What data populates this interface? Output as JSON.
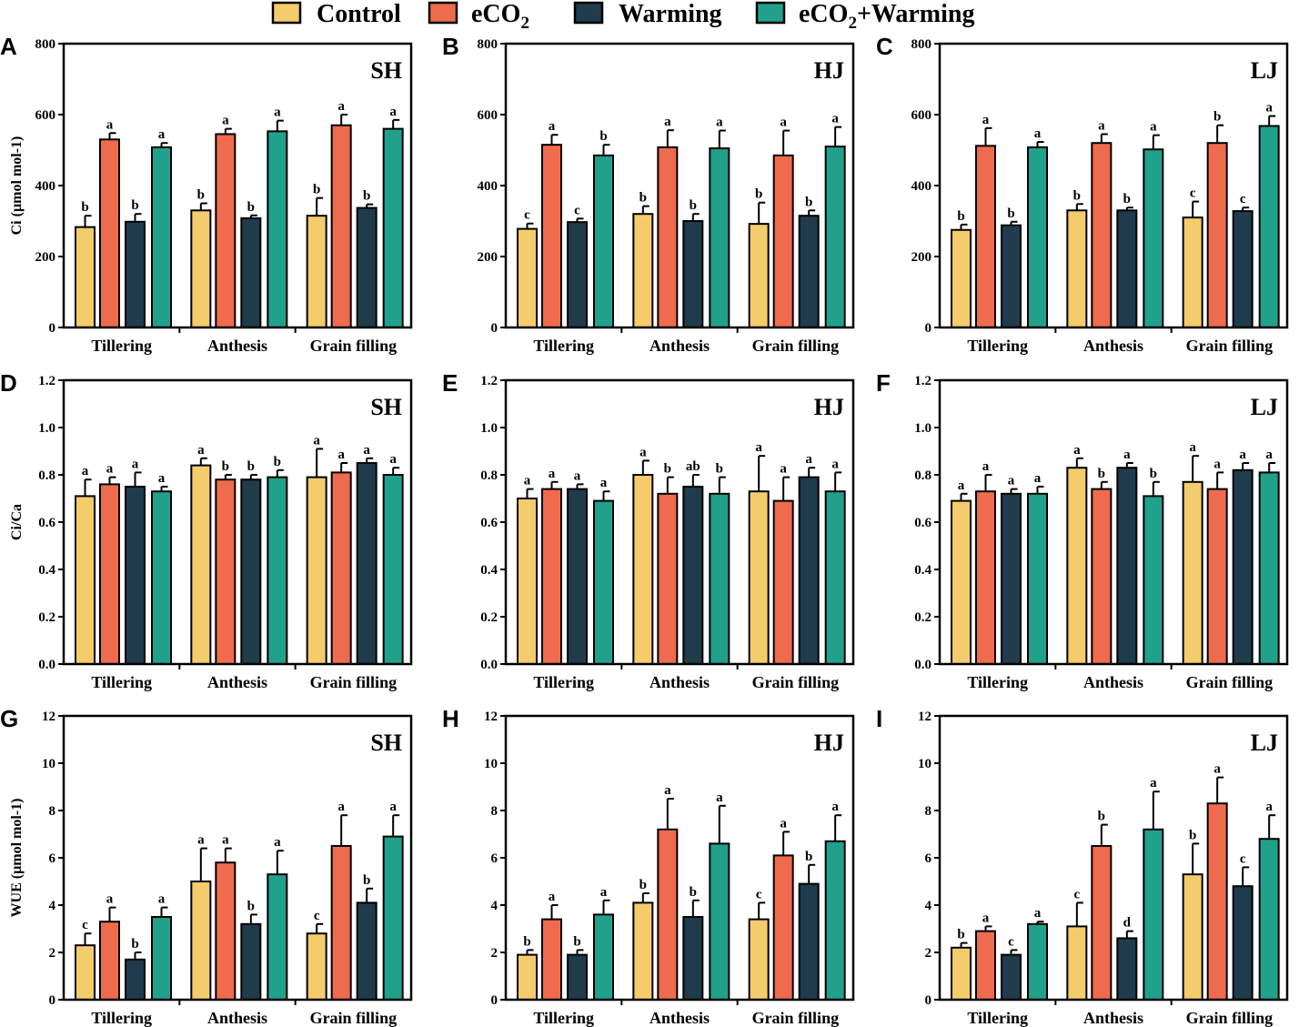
{
  "legend": {
    "items": [
      {
        "label": "Control",
        "color": "#F5CC6B"
      },
      {
        "label": "eCO",
        "sub": "2",
        "suffix": "",
        "color": "#EF6B4E"
      },
      {
        "label": "Warming",
        "color": "#1F3B4C"
      },
      {
        "label": "eCO",
        "sub": "2",
        "suffix": "+Warming",
        "color": "#21A08B"
      }
    ]
  },
  "categories": [
    "Tillering",
    "Anthesis",
    "Grain filling"
  ],
  "chart_data": [
    {
      "type": "bar",
      "panel": "A",
      "site": "SH",
      "ylabel": "Ci (µmol mol-1)",
      "ylim": [
        0,
        800
      ],
      "yticks": [
        "0",
        "200",
        "400",
        "600",
        "800"
      ],
      "series": [
        {
          "name": "Control",
          "values": [
            283,
            330,
            315
          ],
          "errors": [
            32,
            20,
            50
          ],
          "letters": [
            "b",
            "b",
            "b"
          ]
        },
        {
          "name": "eCO2",
          "values": [
            530,
            545,
            570
          ],
          "errors": [
            18,
            15,
            30
          ],
          "letters": [
            "a",
            "a",
            "a"
          ]
        },
        {
          "name": "Warming",
          "values": [
            298,
            308,
            337
          ],
          "errors": [
            22,
            8,
            10
          ],
          "letters": [
            "b",
            "b",
            "b"
          ]
        },
        {
          "name": "eCO2+Warming",
          "values": [
            508,
            553,
            560
          ],
          "errors": [
            12,
            30,
            25
          ],
          "letters": [
            "a",
            "a",
            "a"
          ]
        }
      ]
    },
    {
      "type": "bar",
      "panel": "B",
      "site": "HJ",
      "ylabel": "",
      "ylim": [
        0,
        800
      ],
      "yticks": [
        "0",
        "200",
        "400",
        "600",
        "800"
      ],
      "series": [
        {
          "name": "Control",
          "values": [
            278,
            320,
            292
          ],
          "errors": [
            15,
            22,
            60
          ],
          "letters": [
            "c",
            "b",
            "b"
          ]
        },
        {
          "name": "eCO2",
          "values": [
            515,
            508,
            485
          ],
          "errors": [
            28,
            48,
            70
          ],
          "letters": [
            "a",
            "a",
            "a"
          ]
        },
        {
          "name": "Warming",
          "values": [
            297,
            300,
            315
          ],
          "errors": [
            10,
            20,
            15
          ],
          "letters": [
            "c",
            "b",
            "b"
          ]
        },
        {
          "name": "eCO2+Warming",
          "values": [
            485,
            505,
            510
          ],
          "errors": [
            30,
            50,
            55
          ],
          "letters": [
            "b",
            "a",
            "a"
          ]
        }
      ]
    },
    {
      "type": "bar",
      "panel": "C",
      "site": "LJ",
      "ylabel": "",
      "ylim": [
        0,
        800
      ],
      "yticks": [
        "0",
        "200",
        "400",
        "600",
        "800"
      ],
      "series": [
        {
          "name": "Control",
          "values": [
            275,
            330,
            310
          ],
          "errors": [
            15,
            18,
            45
          ],
          "letters": [
            "b",
            "b",
            "c"
          ]
        },
        {
          "name": "eCO2",
          "values": [
            512,
            520,
            520
          ],
          "errors": [
            50,
            25,
            50
          ],
          "letters": [
            "a",
            "a",
            "b"
          ]
        },
        {
          "name": "Warming",
          "values": [
            288,
            330,
            328
          ],
          "errors": [
            10,
            8,
            10
          ],
          "letters": [
            "b",
            "b",
            "c"
          ]
        },
        {
          "name": "eCO2+Warming",
          "values": [
            508,
            502,
            568
          ],
          "errors": [
            15,
            40,
            28
          ],
          "letters": [
            "a",
            "a",
            "a"
          ]
        }
      ]
    },
    {
      "type": "bar",
      "panel": "D",
      "site": "SH",
      "ylabel": "Ci/Ca",
      "ylim": [
        0,
        1.2
      ],
      "yticks": [
        "0.0",
        "0.2",
        "0.4",
        "0.6",
        "0.8",
        "1.0",
        "1.2"
      ],
      "series": [
        {
          "name": "Control",
          "values": [
            0.71,
            0.84,
            0.79
          ],
          "errors": [
            0.07,
            0.03,
            0.12
          ],
          "letters": [
            "a",
            "a",
            "a"
          ]
        },
        {
          "name": "eCO2",
          "values": [
            0.76,
            0.78,
            0.81
          ],
          "errors": [
            0.03,
            0.02,
            0.04
          ],
          "letters": [
            "a",
            "b",
            "a"
          ]
        },
        {
          "name": "Warming",
          "values": [
            0.75,
            0.78,
            0.85
          ],
          "errors": [
            0.06,
            0.02,
            0.02
          ],
          "letters": [
            "a",
            "b",
            "a"
          ]
        },
        {
          "name": "eCO2+Warming",
          "values": [
            0.73,
            0.79,
            0.8
          ],
          "errors": [
            0.02,
            0.03,
            0.03
          ],
          "letters": [
            "a",
            "b",
            "a"
          ]
        }
      ]
    },
    {
      "type": "bar",
      "panel": "E",
      "site": "HJ",
      "ylabel": "",
      "ylim": [
        0,
        1.2
      ],
      "yticks": [
        "0.0",
        "0.2",
        "0.4",
        "0.6",
        "0.8",
        "1.0",
        "1.2"
      ],
      "series": [
        {
          "name": "Control",
          "values": [
            0.7,
            0.8,
            0.73
          ],
          "errors": [
            0.04,
            0.06,
            0.15
          ],
          "letters": [
            "a",
            "a",
            "a"
          ]
        },
        {
          "name": "eCO2",
          "values": [
            0.74,
            0.72,
            0.69
          ],
          "errors": [
            0.03,
            0.07,
            0.1
          ],
          "letters": [
            "a",
            "b",
            "a"
          ]
        },
        {
          "name": "Warming",
          "values": [
            0.74,
            0.75,
            0.79
          ],
          "errors": [
            0.02,
            0.05,
            0.04
          ],
          "letters": [
            "a",
            "ab",
            "a"
          ]
        },
        {
          "name": "eCO2+Warming",
          "values": [
            0.69,
            0.72,
            0.73
          ],
          "errors": [
            0.04,
            0.07,
            0.08
          ],
          "letters": [
            "a",
            "b",
            "a"
          ]
        }
      ]
    },
    {
      "type": "bar",
      "panel": "F",
      "site": "LJ",
      "ylabel": "",
      "ylim": [
        0,
        1.2
      ],
      "yticks": [
        "0.0",
        "0.2",
        "0.4",
        "0.6",
        "0.8",
        "1.0",
        "1.2"
      ],
      "series": [
        {
          "name": "Control",
          "values": [
            0.69,
            0.83,
            0.77
          ],
          "errors": [
            0.03,
            0.04,
            0.11
          ],
          "letters": [
            "a",
            "a",
            "a"
          ]
        },
        {
          "name": "eCO2",
          "values": [
            0.73,
            0.74,
            0.74
          ],
          "errors": [
            0.07,
            0.03,
            0.07
          ],
          "letters": [
            "a",
            "b",
            "a"
          ]
        },
        {
          "name": "Warming",
          "values": [
            0.72,
            0.83,
            0.82
          ],
          "errors": [
            0.02,
            0.02,
            0.03
          ],
          "letters": [
            "a",
            "a",
            "a"
          ]
        },
        {
          "name": "eCO2+Warming",
          "values": [
            0.72,
            0.71,
            0.81
          ],
          "errors": [
            0.03,
            0.06,
            0.04
          ],
          "letters": [
            "a",
            "b",
            "a"
          ]
        }
      ]
    },
    {
      "type": "bar",
      "panel": "G",
      "site": "SH",
      "ylabel": "WUE (µmol mol-1)",
      "ylim": [
        0,
        12
      ],
      "yticks": [
        "0",
        "2",
        "4",
        "6",
        "8",
        "10",
        "12"
      ],
      "series": [
        {
          "name": "Control",
          "values": [
            2.3,
            5.0,
            2.8
          ],
          "errors": [
            0.5,
            1.4,
            0.4
          ],
          "letters": [
            "c",
            "a",
            "c"
          ]
        },
        {
          "name": "eCO2",
          "values": [
            3.3,
            5.8,
            6.5
          ],
          "errors": [
            0.6,
            0.6,
            1.3
          ],
          "letters": [
            "a",
            "a",
            "a"
          ]
        },
        {
          "name": "Warming",
          "values": [
            1.7,
            3.2,
            4.1
          ],
          "errors": [
            0.3,
            0.4,
            0.6
          ],
          "letters": [
            "b",
            "b",
            "b"
          ]
        },
        {
          "name": "eCO2+Warming",
          "values": [
            3.5,
            5.3,
            6.9
          ],
          "errors": [
            0.4,
            1.0,
            0.9
          ],
          "letters": [
            "a",
            "a",
            "a"
          ]
        }
      ]
    },
    {
      "type": "bar",
      "panel": "H",
      "site": "HJ",
      "ylabel": "",
      "ylim": [
        0,
        12
      ],
      "yticks": [
        "0",
        "2",
        "4",
        "6",
        "8",
        "10",
        "12"
      ],
      "series": [
        {
          "name": "Control",
          "values": [
            1.9,
            4.1,
            3.4
          ],
          "errors": [
            0.2,
            0.4,
            0.7
          ],
          "letters": [
            "b",
            "b",
            "c"
          ]
        },
        {
          "name": "eCO2",
          "values": [
            3.4,
            7.2,
            6.1
          ],
          "errors": [
            0.6,
            1.3,
            1.0
          ],
          "letters": [
            "a",
            "a",
            "a"
          ]
        },
        {
          "name": "Warming",
          "values": [
            1.9,
            3.5,
            4.9
          ],
          "errors": [
            0.2,
            0.7,
            0.8
          ],
          "letters": [
            "b",
            "b",
            "b"
          ]
        },
        {
          "name": "eCO2+Warming",
          "values": [
            3.6,
            6.6,
            6.7
          ],
          "errors": [
            0.6,
            1.6,
            1.1
          ],
          "letters": [
            "a",
            "a",
            "a"
          ]
        }
      ]
    },
    {
      "type": "bar",
      "panel": "I",
      "site": "LJ",
      "ylabel": "",
      "ylim": [
        0,
        12
      ],
      "yticks": [
        "0",
        "2",
        "4",
        "6",
        "8",
        "10",
        "12"
      ],
      "series": [
        {
          "name": "Control",
          "values": [
            2.2,
            3.1,
            5.3
          ],
          "errors": [
            0.2,
            1.0,
            1.3
          ],
          "letters": [
            "b",
            "c",
            "b"
          ]
        },
        {
          "name": "eCO2",
          "values": [
            2.9,
            6.5,
            8.3
          ],
          "errors": [
            0.2,
            0.9,
            1.1
          ],
          "letters": [
            "a",
            "b",
            "a"
          ]
        },
        {
          "name": "Warming",
          "values": [
            1.9,
            2.6,
            4.8
          ],
          "errors": [
            0.2,
            0.3,
            0.8
          ],
          "letters": [
            "c",
            "d",
            "c"
          ]
        },
        {
          "name": "eCO2+Warming",
          "values": [
            3.2,
            7.2,
            6.8
          ],
          "errors": [
            0.1,
            1.6,
            1.0
          ],
          "letters": [
            "a",
            "a",
            "a"
          ]
        }
      ]
    }
  ]
}
